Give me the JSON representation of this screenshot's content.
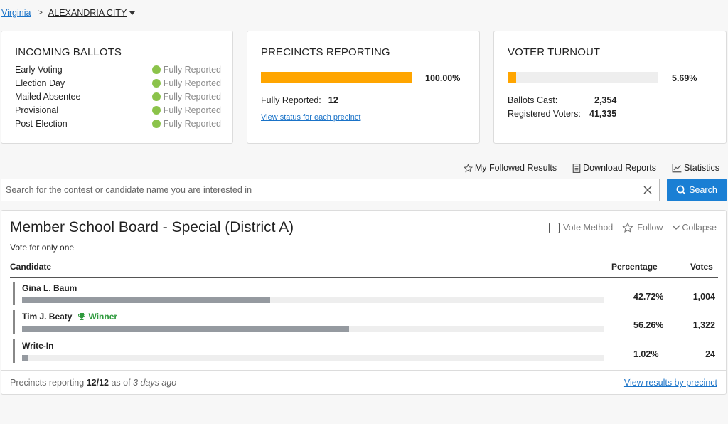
{
  "breadcrumb": {
    "state": "Virginia",
    "separator": ">",
    "county": "ALEXANDRIA CITY"
  },
  "incoming": {
    "title": "INCOMING BALLOTS",
    "rows": [
      {
        "label": "Early Voting",
        "status": "Fully Reported"
      },
      {
        "label": "Election Day",
        "status": "Fully Reported"
      },
      {
        "label": "Mailed Absentee",
        "status": "Fully Reported"
      },
      {
        "label": "Provisional",
        "status": "Fully Reported"
      },
      {
        "label": "Post-Election",
        "status": "Fully Reported"
      }
    ],
    "status_color": "#8bc34a"
  },
  "precincts": {
    "title": "PRECINCTS REPORTING",
    "percent_label": "100.00%",
    "percent_value": 100,
    "fully_label": "Fully Reported:",
    "fully_value": "12",
    "link": "View status for each precinct"
  },
  "turnout": {
    "title": "VOTER TURNOUT",
    "percent_label": "5.69%",
    "percent_value": 5.69,
    "cast_label": "Ballots Cast:",
    "cast_value": "2,354",
    "registered_label": "Registered Voters:",
    "registered_value": "41,335"
  },
  "toolbar": {
    "followed": "My Followed Results",
    "download": "Download Reports",
    "statistics": "Statistics"
  },
  "search": {
    "placeholder": "Search for the contest or candidate name you are interested in",
    "button": "Search"
  },
  "contest": {
    "title": "Member School Board - Special (District A)",
    "subtitle": "Vote for only one",
    "vote_method": "Vote Method",
    "follow": "Follow",
    "collapse": "Collapse",
    "headers": {
      "candidate": "Candidate",
      "percentage": "Percentage",
      "votes": "Votes"
    },
    "candidates": [
      {
        "name": "Gina L. Baum",
        "winner": "",
        "percent_label": "42.72%",
        "percent": 42.72,
        "votes": "1,004"
      },
      {
        "name": "Tim J. Beaty",
        "winner": "Winner",
        "percent_label": "56.26%",
        "percent": 56.26,
        "votes": "1,322"
      },
      {
        "name": "Write-In",
        "winner": "",
        "percent_label": "1.02%",
        "percent": 1.02,
        "votes": "24"
      }
    ],
    "footer": {
      "prefix": "Precincts reporting",
      "count": "12/12",
      "middle": "as of",
      "time": "3 days ago",
      "link": "View results by precinct"
    }
  },
  "colors": {
    "accent": "#1a7fd4",
    "progress": "#ffa500",
    "winner": "#2e9a3d",
    "candidate_bar": "#959aa0"
  }
}
